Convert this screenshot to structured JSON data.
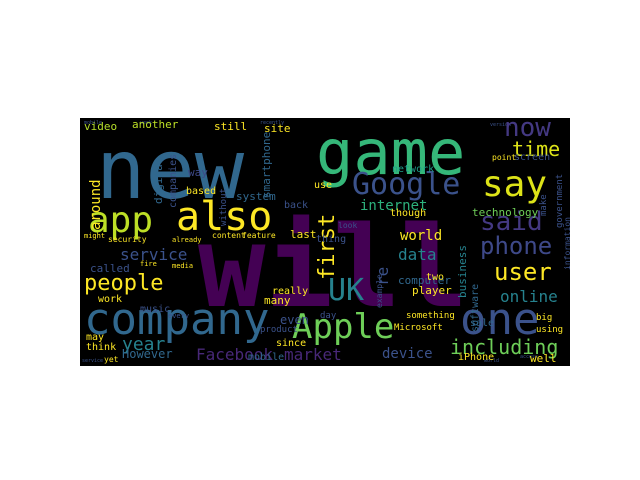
{
  "colors": {
    "background": "#000000",
    "page": "#ffffff",
    "palette_name": "viridis"
  },
  "words": [
    {
      "text": "will",
      "color": "#440154"
    },
    {
      "text": "new",
      "color": "#31688e"
    },
    {
      "text": "game",
      "color": "#35b779"
    },
    {
      "text": "also",
      "color": "#fde725"
    },
    {
      "text": "company",
      "color": "#31688e"
    },
    {
      "text": "one",
      "color": "#3b528b"
    },
    {
      "text": "Apple",
      "color": "#6ece58"
    },
    {
      "text": "app",
      "color": "#bddf26"
    },
    {
      "text": "say",
      "color": "#dde318"
    },
    {
      "text": "Google",
      "color": "#3b528b"
    },
    {
      "text": "now",
      "color": "#443983"
    },
    {
      "text": "said",
      "color": "#443983"
    },
    {
      "text": "phone",
      "color": "#3e4989"
    },
    {
      "text": "user",
      "color": "#fde725"
    },
    {
      "text": "time",
      "color": "#dde318"
    },
    {
      "text": "people",
      "color": "#fde725"
    },
    {
      "text": "UK",
      "color": "#26828e"
    },
    {
      "text": "first",
      "color": "#fde725"
    },
    {
      "text": "including",
      "color": "#6ece58"
    },
    {
      "text": "service",
      "color": "#3b528b"
    },
    {
      "text": "year",
      "color": "#26828e"
    },
    {
      "text": "Facebook",
      "color": "#482878"
    },
    {
      "text": "market",
      "color": "#482878"
    },
    {
      "text": "online",
      "color": "#26828e"
    },
    {
      "text": "data",
      "color": "#26828e"
    },
    {
      "text": "device",
      "color": "#3b528b"
    },
    {
      "text": "world",
      "color": "#fde725"
    },
    {
      "text": "However",
      "color": "#31688e"
    },
    {
      "text": "internet",
      "color": "#2db27d"
    },
    {
      "text": "video",
      "color": "#b5de2b"
    },
    {
      "text": "another",
      "color": "#bddf26"
    },
    {
      "text": "still",
      "color": "#fde725"
    },
    {
      "text": "site",
      "color": "#fde725"
    },
    {
      "text": "around",
      "color": "#fde725"
    },
    {
      "text": "music",
      "color": "#3b528b"
    },
    {
      "text": "technology",
      "color": "#6ece58"
    },
    {
      "text": "network",
      "color": "#1f9e89"
    },
    {
      "text": "computer",
      "color": "#31688e"
    },
    {
      "text": "business",
      "color": "#26828e"
    },
    {
      "text": "software",
      "color": "#31688e"
    },
    {
      "text": "player",
      "color": "#fde725"
    },
    {
      "text": "sale",
      "color": "#31688e"
    },
    {
      "text": "iPhone",
      "color": "#fde725"
    },
    {
      "text": "well",
      "color": "#fde725"
    },
    {
      "text": "even",
      "color": "#3b528b"
    },
    {
      "text": "many",
      "color": "#fde725"
    },
    {
      "text": "really",
      "color": "#fde725"
    },
    {
      "text": "since",
      "color": "#fde725"
    },
    {
      "text": "mobile",
      "color": "#31688e"
    },
    {
      "text": "way",
      "color": "#3e4989"
    },
    {
      "text": "last",
      "color": "#fde725"
    },
    {
      "text": "thing",
      "color": "#3b528b"
    },
    {
      "text": "think",
      "color": "#fde725"
    },
    {
      "text": "work",
      "color": "#fde725"
    },
    {
      "text": "may",
      "color": "#fde725"
    },
    {
      "text": "use",
      "color": "#fde725"
    },
    {
      "text": "back",
      "color": "#3b528b"
    },
    {
      "text": "system",
      "color": "#31688e"
    },
    {
      "text": "digital",
      "color": "#31688e"
    },
    {
      "text": "companies",
      "color": "#3b528b"
    },
    {
      "text": "based",
      "color": "#fde725"
    },
    {
      "text": "smartphone",
      "color": "#31688e"
    },
    {
      "text": "though",
      "color": "#fde725"
    },
    {
      "text": "two",
      "color": "#fde725"
    },
    {
      "text": "screen",
      "color": "#3b528b"
    },
    {
      "text": "make",
      "color": "#3b528b"
    },
    {
      "text": "point",
      "color": "#fde725"
    },
    {
      "text": "government",
      "color": "#3b528b"
    },
    {
      "text": "big",
      "color": "#fde725"
    },
    {
      "text": "using",
      "color": "#fde725"
    },
    {
      "text": "something",
      "color": "#fde725"
    },
    {
      "text": "Microsoft",
      "color": "#fde725"
    },
    {
      "text": "content",
      "color": "#fde725"
    },
    {
      "text": "feature",
      "color": "#fde725"
    },
    {
      "text": "without",
      "color": "#3b528b"
    },
    {
      "text": "security",
      "color": "#fde725"
    },
    {
      "text": "example",
      "color": "#3b528b"
    },
    {
      "text": "called",
      "color": "#3b528b"
    },
    {
      "text": "day",
      "color": "#3b528b"
    },
    {
      "text": "information",
      "color": "#3b528b"
    },
    {
      "text": "re",
      "color": "#3b528b"
    },
    {
      "text": "look",
      "color": "#3b528b"
    },
    {
      "text": "might",
      "color": "#fde725"
    },
    {
      "text": "already",
      "color": "#fde725"
    },
    {
      "text": "every",
      "color": "#3b528b"
    },
    {
      "text": "product",
      "color": "#3b528b"
    },
    {
      "text": "yet",
      "color": "#fde725"
    },
    {
      "text": "fire",
      "color": "#fde725"
    },
    {
      "text": "media",
      "color": "#fde725"
    }
  ]
}
